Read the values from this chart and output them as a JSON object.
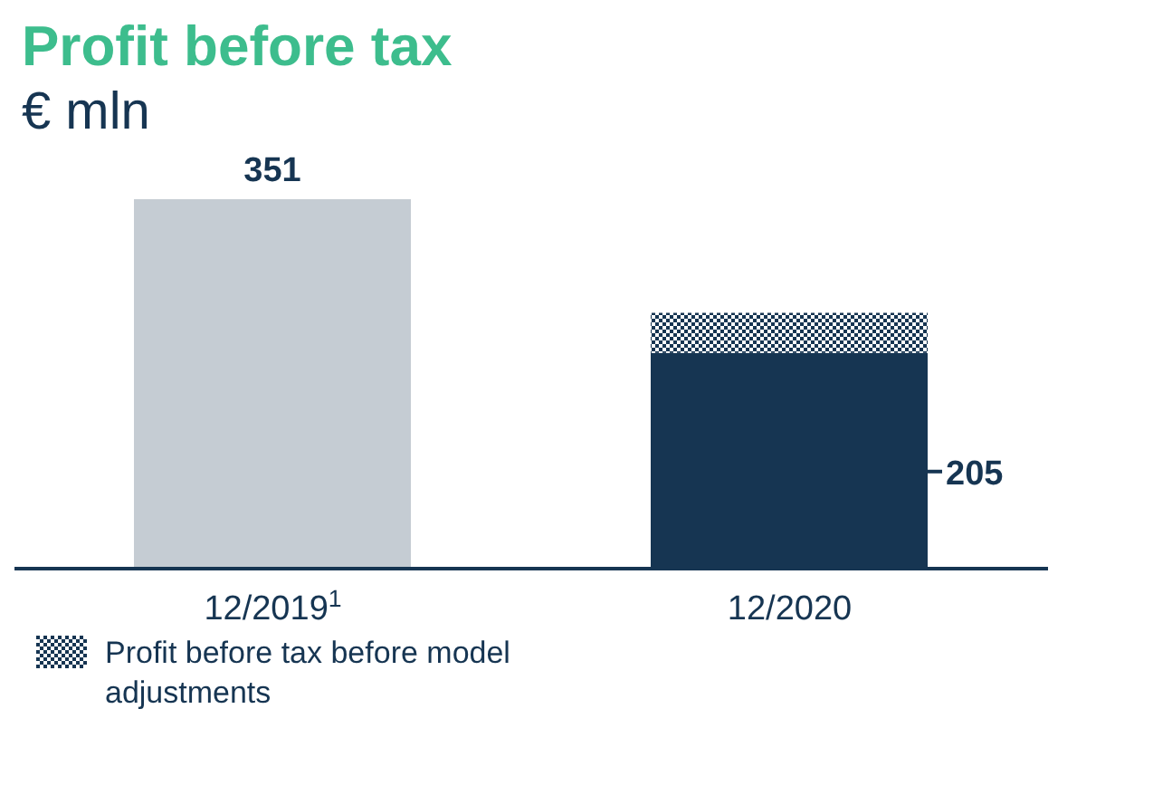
{
  "chart_data": {
    "type": "bar",
    "title": "Profit before tax",
    "subtitle": "€ mln",
    "categories": [
      "12/2019$^{1}$",
      "12/2020"
    ],
    "stacked": true,
    "legend": "bottom left",
    "series": [
      {
        "colors": [
          "#c5ccd3",
          "#163552"
        ],
        "values": [
          351,
          205
        ],
        "value_labels": [
          "351",
          "205"
        ]
      },
      {
        "name": "Profit before tax before model adjustments",
        "color": "#163552",
        "values": [
          null,
          38
        ]
      }
    ]
  }
}
